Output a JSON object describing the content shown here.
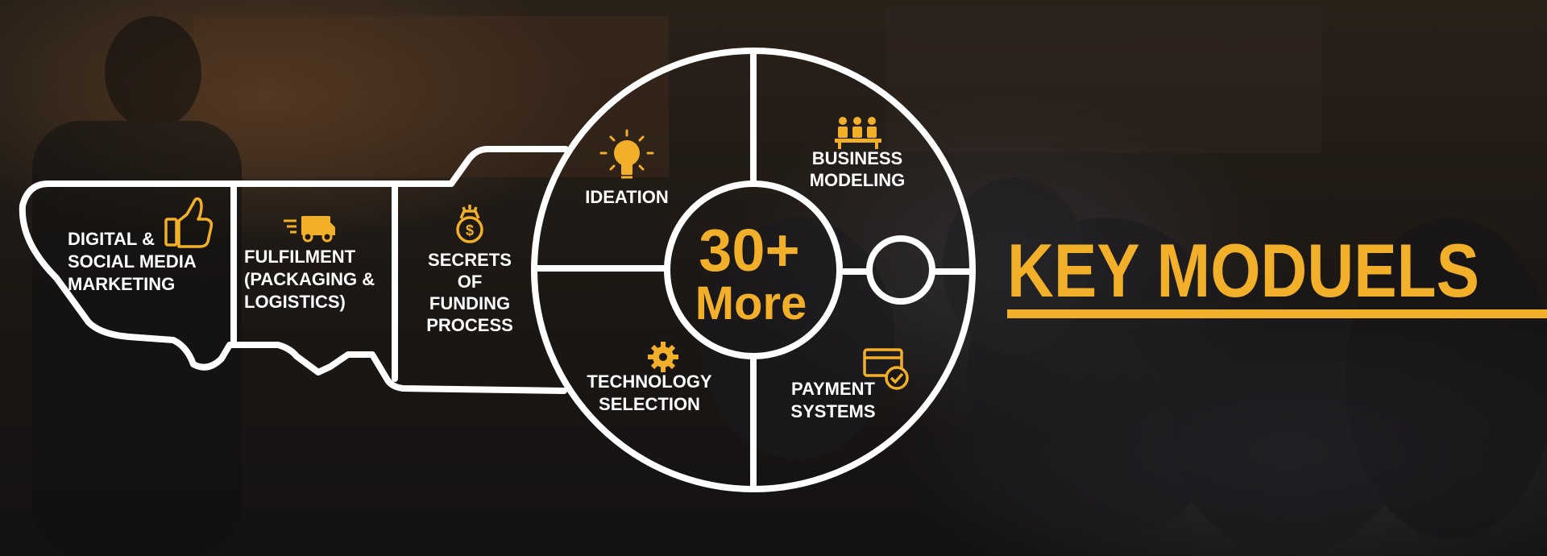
{
  "banner": {
    "title": "KEY MODUELS",
    "accent_color": "#f2b02a",
    "outline_color": "#ffffff"
  },
  "key": {
    "center_lines": [
      "30+",
      "More"
    ],
    "modules": [
      {
        "lines": [
          "DIGITAL &",
          "SOCIAL MEDIA",
          "MARKETING"
        ],
        "icon": "thumbs-up-icon"
      },
      {
        "lines": [
          "FULFILMENT",
          "(PACKAGING &",
          "LOGISTICS)"
        ],
        "icon": "delivery-truck-icon"
      },
      {
        "lines": [
          "SECRETS",
          "OF",
          "FUNDING",
          "PROCESS"
        ],
        "icon": "money-bag-icon"
      },
      {
        "lines": [
          "IDEATION"
        ],
        "icon": "light-bulb-icon"
      },
      {
        "lines": [
          "BUSINESS",
          "MODELING"
        ],
        "icon": "meeting-icon"
      },
      {
        "lines": [
          "TECHNOLOGY",
          "SELECTION"
        ],
        "icon": "gear-icon"
      },
      {
        "lines": [
          "PAYMENT",
          "SYSTEMS"
        ],
        "icon": "credit-card-icon"
      }
    ]
  }
}
